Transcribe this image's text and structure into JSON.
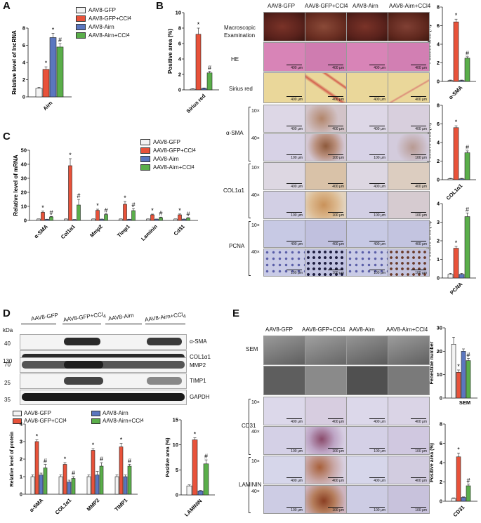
{
  "panels": {
    "A": "A",
    "B": "B",
    "C": "C",
    "D": "D",
    "E": "E"
  },
  "colors": {
    "gfp": "#f3f3f3",
    "gfp_ccl4": "#e8523a",
    "airn": "#5b76bf",
    "airn_ccl4": "#5aae4a",
    "he": "#d884b7",
    "sirius": "#ead79a",
    "ihc": "#d7d2e6",
    "ihc_pos": "#a36e4a",
    "sem": "#7a7a7a",
    "liver": "#6a2a22"
  },
  "groups": [
    "AAV8-GFP",
    "AAV8-GFP+CCl4",
    "AAV8-Airn",
    "AAV8-Airn+CCl4"
  ],
  "group_labels": {
    "gfp": "AAV8-GFP",
    "gfp_ccl4_main": "AAV8-GFP+CCl",
    "airn": "AAV8-Airn",
    "airn_ccl4_main": "AAV8-Airn+CCl",
    "sub4": "4"
  },
  "panel_b": {
    "col_headers": [
      "AAV8-GFP",
      "AAV8-GFP+CCl4",
      "AAV8-Airn",
      "AAV8-Airn+CCl4"
    ],
    "rows": {
      "macro": "Macroscopic\nExamination",
      "he": "HE",
      "sirius": "Sirius red",
      "asma": "α-SMA",
      "col1": "COL1α1",
      "pcna": "PCNA"
    },
    "mags": [
      "10×",
      "40×"
    ],
    "scale_400": "400 μm",
    "scale_100": "100 μm"
  },
  "panel_e": {
    "col_headers": [
      "AAV8-GFP",
      "AAV8-GFP+CCl4",
      "AAV8-Airn",
      "AAV8-Airn+CCl4"
    ],
    "rows": {
      "sem": "SEM",
      "cd31": "CD31",
      "laminin": "LAMININ"
    }
  },
  "panel_d_blot": {
    "kda_label": "kDa",
    "markers": [
      "40",
      "130",
      "70",
      "25",
      "35"
    ],
    "proteins": [
      "α-SMA",
      "COL1α1",
      "MMP2",
      "TIMP1",
      "GAPDH"
    ]
  },
  "chart_data": [
    {
      "id": "A",
      "type": "bar",
      "categories": [
        "Airn"
      ],
      "series": [
        {
          "name": "AAV8-GFP",
          "values": [
            1.0
          ],
          "err": [
            0.1
          ]
        },
        {
          "name": "AAV8-GFP+CCl4",
          "values": [
            3.2
          ],
          "err": [
            0.3
          ]
        },
        {
          "name": "AAV8-Airn",
          "values": [
            6.9
          ],
          "err": [
            0.5
          ]
        },
        {
          "name": "AAV8-Airn+CCl4",
          "values": [
            5.8
          ],
          "err": [
            0.4
          ]
        }
      ],
      "sig": [
        "",
        "*",
        "*",
        "#"
      ],
      "ylabel": "Relative level of lncRNA",
      "ylim": [
        0,
        8
      ],
      "yticks": [
        0,
        2,
        4,
        6,
        8
      ]
    },
    {
      "id": "B_sirius",
      "type": "bar",
      "categories": [
        "Sirius red"
      ],
      "series": [
        {
          "name": "AAV8-GFP",
          "values": [
            0.1
          ],
          "err": [
            0.05
          ]
        },
        {
          "name": "AAV8-GFP+CCl4",
          "values": [
            7.2
          ],
          "err": [
            0.8
          ]
        },
        {
          "name": "AAV8-Airn",
          "values": [
            0.2
          ],
          "err": [
            0.05
          ]
        },
        {
          "name": "AAV8-Airn+CCl4",
          "values": [
            2.2
          ],
          "err": [
            0.2
          ]
        }
      ],
      "sig": [
        "",
        "*",
        "",
        "#"
      ],
      "ylabel": "Positive area (%)",
      "ylim": [
        0,
        10
      ],
      "yticks": [
        0,
        2,
        4,
        6,
        8,
        10
      ]
    },
    {
      "id": "C",
      "type": "bar",
      "categories": [
        "α-SMA",
        "Col1α1",
        "Mmp2",
        "Timp1",
        "Laminin",
        "Cd31"
      ],
      "series": [
        {
          "name": "AAV8-GFP",
          "values": [
            1,
            1,
            1,
            1,
            1,
            1
          ],
          "err": [
            0.1,
            0.1,
            0.1,
            0.1,
            0.1,
            0.1
          ]
        },
        {
          "name": "AAV8-GFP+CCl4",
          "values": [
            5.8,
            39,
            7.2,
            11.5,
            4,
            4
          ],
          "err": [
            0.8,
            5,
            0.8,
            2,
            0.5,
            0.6
          ]
        },
        {
          "name": "AAV8-Airn",
          "values": [
            0.8,
            0.6,
            0.9,
            0.8,
            0.9,
            0.9
          ],
          "err": [
            0.1,
            0.1,
            0.1,
            0.1,
            0.1,
            0.1
          ]
        },
        {
          "name": "AAV8-Airn+CCl4",
          "values": [
            2.5,
            11,
            4.2,
            7,
            2,
            1.7
          ],
          "err": [
            0.4,
            4,
            0.6,
            1.5,
            0.4,
            0.3
          ]
        }
      ],
      "sig": [
        "",
        "*",
        "",
        "#"
      ],
      "ylabel": "Relative level of mRNA",
      "ylim": [
        0,
        50
      ],
      "yticks": [
        0,
        10,
        20,
        30,
        40,
        50
      ]
    },
    {
      "id": "D_protein",
      "type": "bar",
      "categories": [
        "α-SMA",
        "COL1α1",
        "MMP2",
        "TIMP1"
      ],
      "series": [
        {
          "name": "AAV8-GFP",
          "values": [
            1,
            1,
            1,
            1
          ],
          "err": [
            0.1,
            0.1,
            0.1,
            0.1
          ]
        },
        {
          "name": "AAV8-GFP+CCl4",
          "values": [
            3.0,
            1.7,
            2.5,
            2.7
          ],
          "err": [
            0.1,
            0.1,
            0.1,
            0.2
          ]
        },
        {
          "name": "AAV8-Airn",
          "values": [
            1.1,
            0.7,
            1.1,
            1.0
          ],
          "err": [
            0.1,
            0.1,
            0.2,
            0.1
          ]
        },
        {
          "name": "AAV8-Airn+CCl4",
          "values": [
            1.5,
            0.9,
            1.6,
            1.6
          ],
          "err": [
            0.2,
            0.1,
            0.2,
            0.1
          ]
        }
      ],
      "sig": [
        "",
        "*",
        "",
        "#"
      ],
      "ylabel": "Relative level of protein",
      "ylim": [
        0,
        4
      ],
      "yticks": [
        0,
        1,
        2,
        3,
        4
      ]
    },
    {
      "id": "D_laminin",
      "type": "bar",
      "categories": [
        "LAMININ"
      ],
      "series": [
        {
          "name": "AAV8-GFP",
          "values": [
            1.8
          ],
          "err": [
            0.2
          ]
        },
        {
          "name": "AAV8-GFP+CCl4",
          "values": [
            11
          ],
          "err": [
            0.4
          ]
        },
        {
          "name": "AAV8-Airn",
          "values": [
            0.8
          ],
          "err": [
            0.1
          ]
        },
        {
          "name": "AAV8-Airn+CCl4",
          "values": [
            6.2
          ],
          "err": [
            0.8
          ]
        }
      ],
      "sig": [
        "",
        "*",
        "",
        "#"
      ],
      "ylabel": "Positive area (%)",
      "ylim": [
        0,
        15
      ],
      "yticks": [
        0,
        5,
        10,
        15
      ]
    },
    {
      "id": "B_asma",
      "type": "bar",
      "categories": [
        "α-SMA"
      ],
      "series": [
        {
          "name": "AAV8-GFP",
          "values": [
            0.1
          ],
          "err": [
            0.05
          ]
        },
        {
          "name": "AAV8-GFP+CCl4",
          "values": [
            6.4
          ],
          "err": [
            0.3
          ]
        },
        {
          "name": "AAV8-Airn",
          "values": [
            0.1
          ],
          "err": [
            0.05
          ]
        },
        {
          "name": "AAV8-Airn+CCl4",
          "values": [
            2.5
          ],
          "err": [
            0.15
          ]
        }
      ],
      "sig": [
        "",
        "*",
        "",
        "#"
      ],
      "ylabel": "Positive area (%)",
      "ylim": [
        0,
        8
      ],
      "yticks": [
        0,
        2,
        4,
        6,
        8
      ]
    },
    {
      "id": "B_col1",
      "type": "bar",
      "categories": [
        "COL1α1"
      ],
      "series": [
        {
          "name": "AAV8-GFP",
          "values": [
            0.1
          ],
          "err": [
            0.05
          ]
        },
        {
          "name": "AAV8-GFP+CCl4",
          "values": [
            5.6
          ],
          "err": [
            0.2
          ]
        },
        {
          "name": "AAV8-Airn",
          "values": [
            0.1
          ],
          "err": [
            0.05
          ]
        },
        {
          "name": "AAV8-Airn+CCl4",
          "values": [
            2.9
          ],
          "err": [
            0.2
          ]
        }
      ],
      "sig": [
        "",
        "*",
        "",
        "#"
      ],
      "ylabel": "Positive area (%)",
      "ylim": [
        0,
        8
      ],
      "yticks": [
        0,
        2,
        4,
        6,
        8
      ]
    },
    {
      "id": "B_pcna",
      "type": "bar",
      "categories": [
        "PCNA"
      ],
      "series": [
        {
          "name": "AAV8-GFP",
          "values": [
            0.2
          ],
          "err": [
            0.05
          ]
        },
        {
          "name": "AAV8-GFP+CCl4",
          "values": [
            1.6
          ],
          "err": [
            0.1
          ]
        },
        {
          "name": "AAV8-Airn",
          "values": [
            0.2
          ],
          "err": [
            0.05
          ]
        },
        {
          "name": "AAV8-Airn+CCl4",
          "values": [
            3.3
          ],
          "err": [
            0.2
          ]
        }
      ],
      "sig": [
        "",
        "*",
        "",
        "#"
      ],
      "ylabel": "Positive area (%)",
      "ylim": [
        0,
        4
      ],
      "yticks": [
        0,
        1,
        2,
        3,
        4
      ]
    },
    {
      "id": "E_sem",
      "type": "bar",
      "categories": [
        "SEM"
      ],
      "series": [
        {
          "name": "AAV8-GFP",
          "values": [
            23
          ],
          "err": [
            3
          ]
        },
        {
          "name": "AAV8-GFP+CCl4",
          "values": [
            11
          ],
          "err": [
            1
          ]
        },
        {
          "name": "AAV8-Airn",
          "values": [
            20
          ],
          "err": [
            1
          ]
        },
        {
          "name": "AAV8-Airn+CCl4",
          "values": [
            16
          ],
          "err": [
            1
          ]
        }
      ],
      "sig": [
        "",
        "*",
        "",
        "#"
      ],
      "ylabel": "Fenestrae number",
      "ylim": [
        0,
        30
      ],
      "yticks": [
        0,
        10,
        20,
        30
      ]
    },
    {
      "id": "E_cd31",
      "type": "bar",
      "categories": [
        "CD31"
      ],
      "series": [
        {
          "name": "AAV8-GFP",
          "values": [
            0.3
          ],
          "err": [
            0.05
          ]
        },
        {
          "name": "AAV8-GFP+CCl4",
          "values": [
            4.6
          ],
          "err": [
            0.4
          ]
        },
        {
          "name": "AAV8-Airn",
          "values": [
            0.4
          ],
          "err": [
            0.05
          ]
        },
        {
          "name": "AAV8-Airn+CCl4",
          "values": [
            1.6
          ],
          "err": [
            0.2
          ]
        }
      ],
      "sig": [
        "",
        "*",
        "",
        "#"
      ],
      "ylabel": "Positive area (%)",
      "ylim": [
        0,
        8
      ],
      "yticks": [
        0,
        2,
        4,
        6,
        8
      ]
    }
  ]
}
